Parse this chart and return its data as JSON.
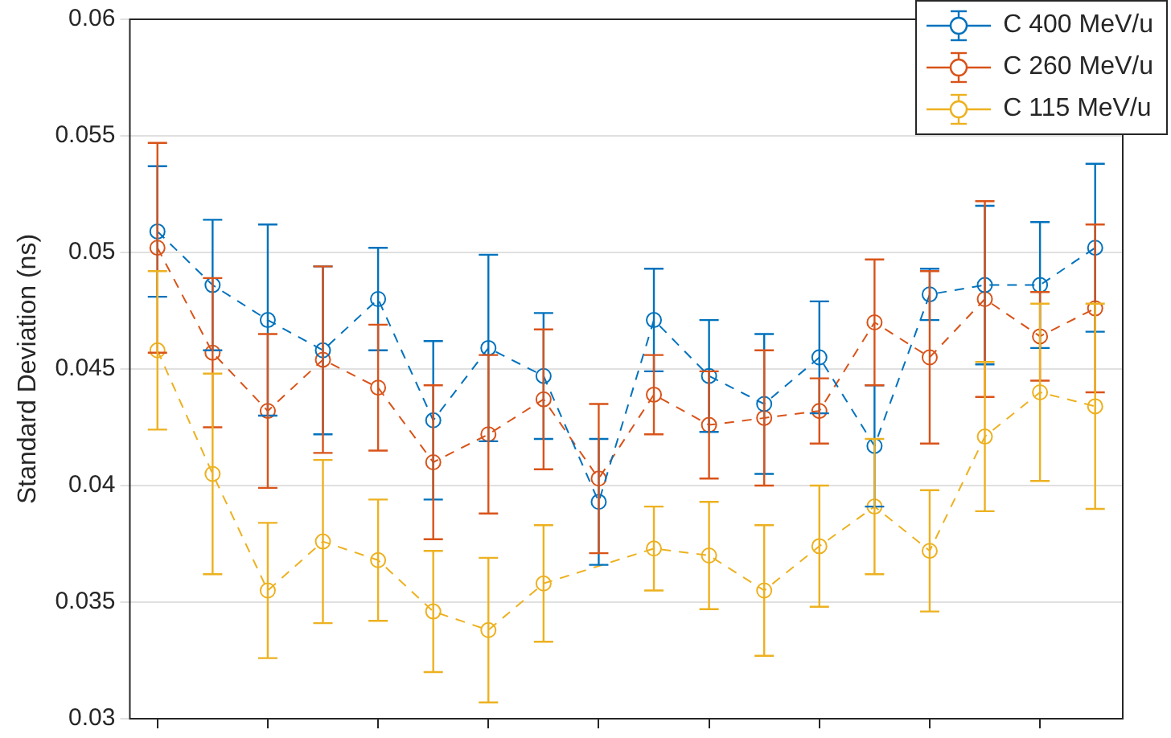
{
  "chart_data": {
    "type": "line",
    "ylabel": "Standard Deviation (ns)",
    "categories": [
      null,
      null,
      null,
      null,
      null,
      null,
      null,
      null,
      null,
      null,
      null,
      null,
      null,
      null,
      null,
      null,
      null,
      null
    ],
    "ylim": [
      0.03,
      0.06
    ],
    "yticks": [
      0.03,
      0.035,
      0.04,
      0.045,
      0.05,
      0.055,
      0.06
    ],
    "tick_labels": "y",
    "grid": "y",
    "legend": "top right",
    "marker": "circle",
    "line_style": "dashed",
    "series": [
      {
        "name": "C 400 MeV/u",
        "color": "#0072bd",
        "values": [
          0.0509,
          0.0486,
          0.0471,
          0.0458,
          0.048,
          0.0428,
          0.0459,
          0.0447,
          0.0393,
          0.0471,
          0.0447,
          0.0435,
          0.0455,
          0.0417,
          0.0482,
          0.0486,
          0.0486,
          0.0502
        ],
        "errors": [
          0.0028,
          0.0028,
          0.0041,
          0.0036,
          0.0022,
          0.0034,
          0.004,
          0.0027,
          0.0027,
          0.0022,
          0.0024,
          0.003,
          0.0024,
          0.0026,
          0.0011,
          0.0034,
          0.0027,
          0.0036
        ]
      },
      {
        "name": "C 260 MeV/u",
        "color": "#d95319",
        "values": [
          0.0502,
          0.0457,
          0.0432,
          0.0454,
          0.0442,
          0.041,
          0.0422,
          0.0437,
          0.0403,
          0.0439,
          0.0426,
          0.0429,
          0.0432,
          0.047,
          0.0455,
          0.048,
          0.0464,
          0.0476
        ],
        "errors": [
          0.0045,
          0.0032,
          0.0033,
          0.004,
          0.0027,
          0.0033,
          0.0034,
          0.003,
          0.0032,
          0.0017,
          0.0023,
          0.0029,
          0.0014,
          0.0027,
          0.0037,
          0.0042,
          0.0019,
          0.0036
        ]
      },
      {
        "name": "C 115 MeV/u",
        "color": "#edb120",
        "values": [
          0.0458,
          0.0405,
          0.0355,
          0.0376,
          0.0368,
          0.0346,
          0.0338,
          0.0358,
          null,
          0.0373,
          0.037,
          0.0355,
          0.0374,
          0.0391,
          0.0372,
          0.0421,
          0.044,
          0.0434
        ],
        "errors": [
          0.0034,
          0.0043,
          0.0029,
          0.0035,
          0.0026,
          0.0026,
          0.0031,
          0.0025,
          null,
          0.0018,
          0.0023,
          0.0028,
          0.0026,
          0.0029,
          0.0026,
          0.0032,
          0.0038,
          0.0044
        ]
      }
    ]
  }
}
